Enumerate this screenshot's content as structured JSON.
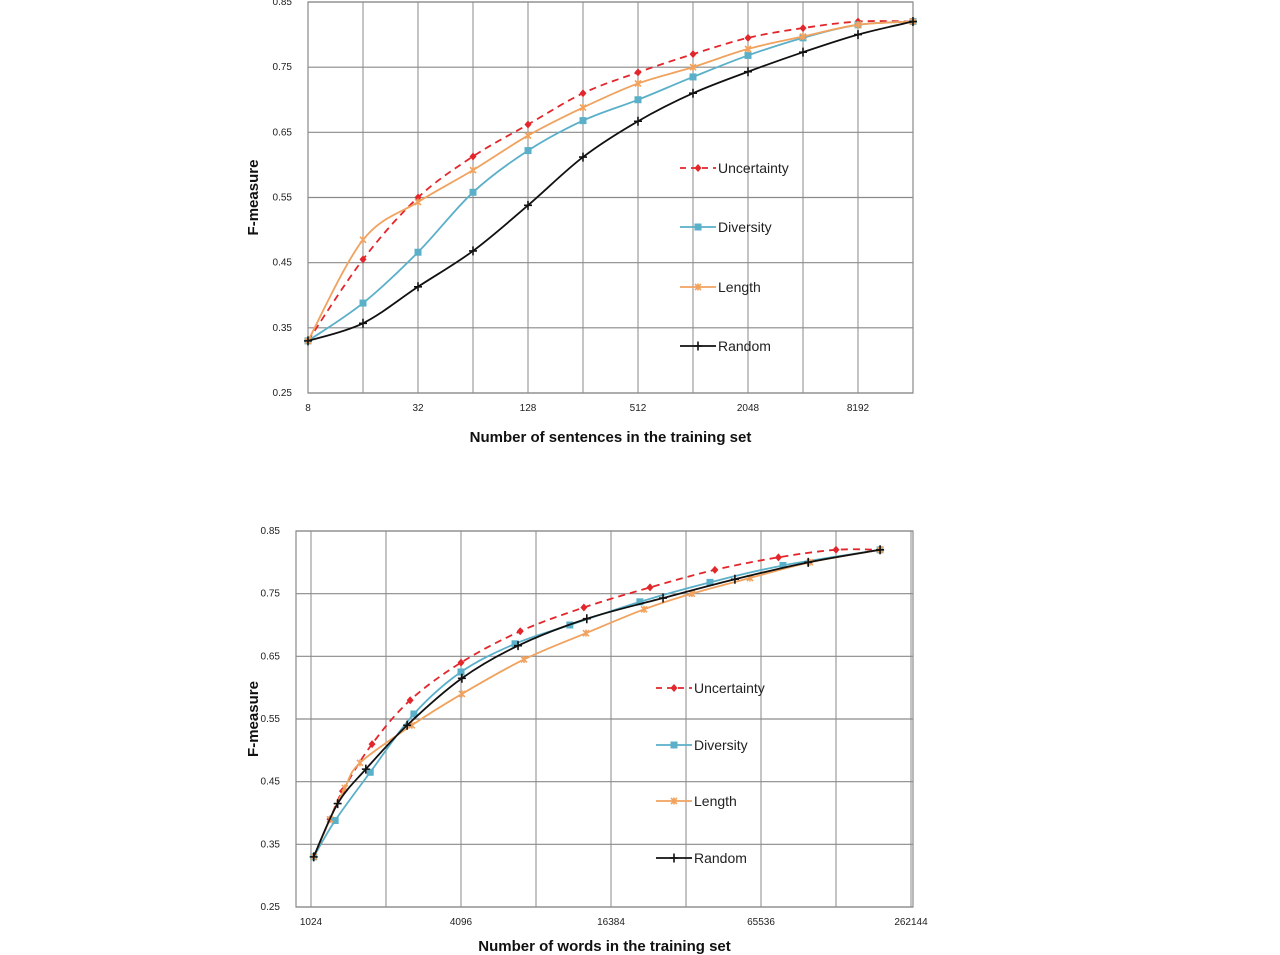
{
  "colors": {
    "Uncertainty": "#e3262b",
    "Diversity": "#5aafc9",
    "Length": "#f0a25e",
    "Random": "#111111",
    "grid": "#8a8a8a"
  },
  "chart_data": [
    {
      "type": "line",
      "xlabel": "Number of sentences in the training set",
      "ylabel": "F-measure",
      "xscale": "log2",
      "xlim": [
        8,
        16384
      ],
      "ylim": [
        0.25,
        0.85
      ],
      "xticks": [
        "8",
        "32",
        "128",
        "512",
        "2048",
        "8192"
      ],
      "yticks": [
        "0.25",
        "0.35",
        "0.45",
        "0.55",
        "0.65",
        "0.75",
        "0.85"
      ],
      "grid": true,
      "legend": "right",
      "series": [
        {
          "name": "Uncertainty",
          "marker": "diamond",
          "dashed": true,
          "x": [
            8,
            16,
            32,
            64,
            128,
            256,
            512,
            1024,
            2048,
            4096,
            8192,
            16384
          ],
          "y": [
            0.33,
            0.455,
            0.55,
            0.613,
            0.662,
            0.71,
            0.742,
            0.77,
            0.795,
            0.81,
            0.82,
            0.82
          ]
        },
        {
          "name": "Diversity",
          "marker": "square",
          "dashed": false,
          "x": [
            8,
            16,
            32,
            64,
            128,
            256,
            512,
            1024,
            2048,
            4096,
            8192,
            16384
          ],
          "y": [
            0.33,
            0.388,
            0.466,
            0.558,
            0.622,
            0.668,
            0.7,
            0.735,
            0.768,
            0.795,
            0.815,
            0.82
          ]
        },
        {
          "name": "Length",
          "marker": "star",
          "dashed": false,
          "x": [
            8,
            16,
            32,
            64,
            128,
            256,
            512,
            1024,
            2048,
            4096,
            8192,
            16384
          ],
          "y": [
            0.33,
            0.485,
            0.543,
            0.592,
            0.645,
            0.688,
            0.725,
            0.75,
            0.778,
            0.797,
            0.815,
            0.82
          ]
        },
        {
          "name": "Random",
          "marker": "plus",
          "dashed": false,
          "x": [
            8,
            16,
            32,
            64,
            128,
            256,
            512,
            1024,
            2048,
            4096,
            8192,
            16384
          ],
          "y": [
            0.33,
            0.357,
            0.413,
            0.468,
            0.538,
            0.612,
            0.667,
            0.71,
            0.743,
            0.773,
            0.8,
            0.82
          ]
        }
      ]
    },
    {
      "type": "line",
      "xlabel": "Number of words in the training set",
      "ylabel": "F-measure",
      "xscale": "log2",
      "xlim": [
        1024,
        262144
      ],
      "ylim": [
        0.25,
        0.85
      ],
      "xticks": [
        "1024",
        "4096",
        "16384",
        "65536",
        "262144"
      ],
      "yticks": [
        "0.25",
        "0.35",
        "0.45",
        "0.55",
        "0.65",
        "0.75",
        "0.85"
      ],
      "grid": true,
      "legend": "right",
      "series": [
        {
          "name": "Uncertainty",
          "marker": "diamond",
          "dashed": true,
          "x": [
            1050,
            1220,
            1370,
            1800,
            2560,
            4096,
            7080,
            12750,
            23500,
            42800,
            77000,
            131072,
            197000
          ],
          "y": [
            0.33,
            0.39,
            0.435,
            0.51,
            0.58,
            0.64,
            0.69,
            0.728,
            0.76,
            0.788,
            0.808,
            0.82,
            0.82
          ]
        },
        {
          "name": "Diversity",
          "marker": "square",
          "dashed": false,
          "x": [
            1050,
            1280,
            1770,
            2650,
            4096,
            6750,
            11200,
            21400,
            40900,
            80300,
            197000
          ],
          "y": [
            0.33,
            0.388,
            0.465,
            0.558,
            0.625,
            0.67,
            0.7,
            0.737,
            0.768,
            0.795,
            0.82
          ]
        },
        {
          "name": "Length",
          "marker": "star",
          "dashed": false,
          "x": [
            1050,
            1220,
            1400,
            1610,
            2600,
            4130,
            7330,
            13000,
            22240,
            34600,
            59200,
            103000,
            197000
          ],
          "y": [
            0.33,
            0.39,
            0.44,
            0.48,
            0.54,
            0.59,
            0.645,
            0.687,
            0.725,
            0.75,
            0.775,
            0.8,
            0.82
          ]
        },
        {
          "name": "Random",
          "marker": "plus",
          "dashed": false,
          "x": [
            1050,
            1310,
            1700,
            2490,
            4130,
            6940,
            13100,
            26500,
            51500,
            101400,
            197000
          ],
          "y": [
            0.33,
            0.415,
            0.47,
            0.54,
            0.615,
            0.667,
            0.71,
            0.743,
            0.773,
            0.8,
            0.82
          ]
        }
      ]
    }
  ]
}
